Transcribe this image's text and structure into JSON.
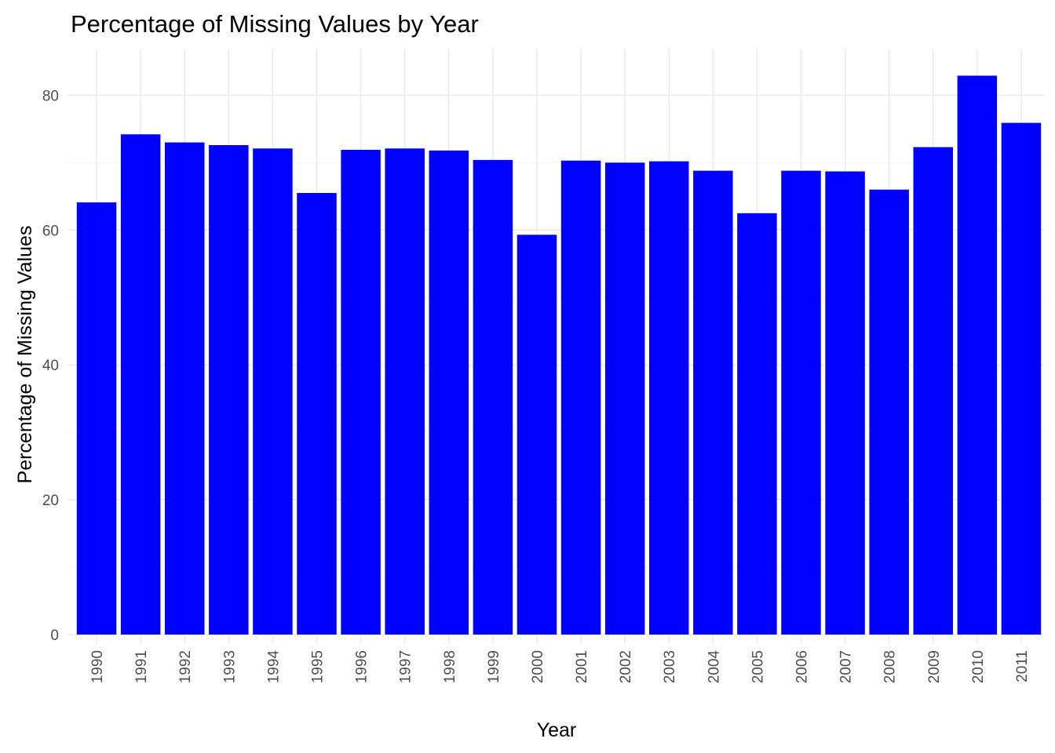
{
  "chart_data": {
    "type": "bar",
    "title": "Percentage of Missing Values by Year",
    "xlabel": "Year",
    "ylabel": "Percentage of Missing Values",
    "categories": [
      "1990",
      "1991",
      "1992",
      "1993",
      "1994",
      "1995",
      "1996",
      "1997",
      "1998",
      "1999",
      "2000",
      "2001",
      "2002",
      "2003",
      "2004",
      "2005",
      "2006",
      "2007",
      "2008",
      "2009",
      "2010",
      "2011"
    ],
    "values": [
      64.1,
      74.2,
      73.0,
      72.6,
      72.1,
      65.5,
      71.9,
      72.1,
      71.8,
      70.4,
      59.3,
      70.3,
      70.0,
      70.2,
      68.8,
      62.5,
      68.8,
      68.7,
      66.0,
      72.3,
      82.9,
      75.9
    ],
    "ylim": [
      0,
      85
    ],
    "yticks": [
      0,
      20,
      40,
      60,
      80
    ],
    "grid": true,
    "legend": "none",
    "bar_color": "#0000ff"
  }
}
